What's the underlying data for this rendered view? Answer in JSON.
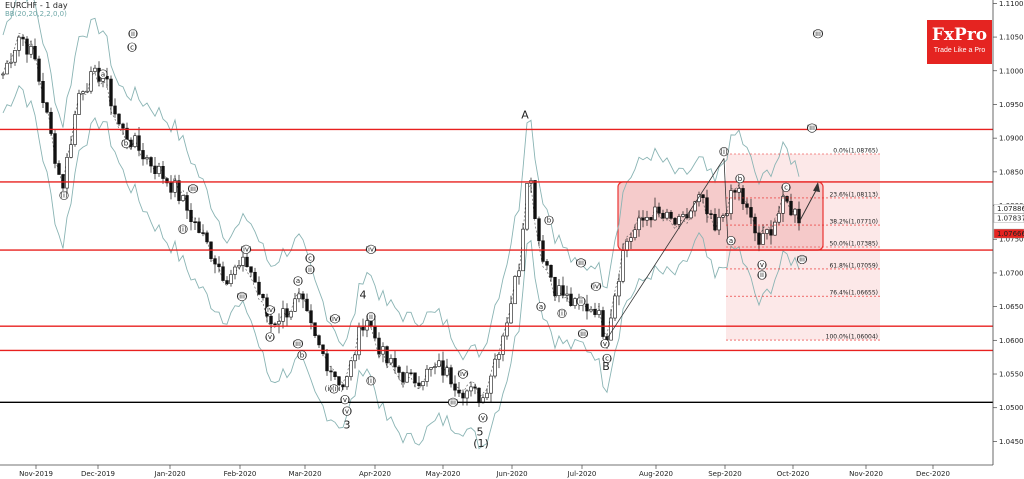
{
  "header": {
    "title": "EURCHF - 1 day",
    "indicator": "BB(20,20,2,2,0,0)"
  },
  "brand": {
    "name": "FxPro",
    "tagline": "Trade Like a Pro"
  },
  "colors": {
    "levels": "#e8201f",
    "support": "#000000",
    "band": "#8ab4b4",
    "zone_fill": "#f5c6c6",
    "fib_fill": "#fbe0e0",
    "price_bg": "#e52421"
  },
  "chart_data": {
    "type": "candlestick",
    "title": "EURCHF - 1 day",
    "x_ticks": [
      "Nov-2019",
      "Dec-2019",
      "Jan-2020",
      "Feb-2020",
      "Mar-2020",
      "Apr-2020",
      "May-2020",
      "Jun-2020",
      "Jul-2020",
      "Aug-2020",
      "Sep-2020",
      "Oct-2020",
      "Nov-2020",
      "Dec-2020"
    ],
    "ylim": [
      1.0415,
      1.1105
    ],
    "y_ticks": [
      "1.11000",
      "1.10500",
      "1.10000",
      "1.09500",
      "1.09000",
      "1.08500",
      "1.08000",
      "1.07500",
      "1.07000",
      "1.06500",
      "1.06000",
      "1.05500",
      "1.05000",
      "1.04500"
    ],
    "price_tags": [
      "1.07886",
      "1.07837",
      "1.07666"
    ],
    "horizontal_levels": [
      1.0913,
      1.0835,
      1.0734,
      1.0621,
      1.0585
    ],
    "support_level": 1.0508,
    "consolidation_zone": {
      "top": 1.0835,
      "bottom": 1.0734,
      "from": "Jul-2020",
      "to": "Oct-2020"
    },
    "fibonacci": [
      {
        "label": "0.0%(1.08765)",
        "value": 1.08765
      },
      {
        "label": "23.6%(1.08113)",
        "value": 1.08113
      },
      {
        "label": "38.2%(1.07710)",
        "value": 1.0771
      },
      {
        "label": "50.0%(1.07385)",
        "value": 1.07385
      },
      {
        "label": "61.8%(1.07059)",
        "value": 1.07059
      },
      {
        "label": "76.4%(1.06655)",
        "value": 1.06655
      },
      {
        "label": "100.0%(1.06004)",
        "value": 1.06004
      }
    ],
    "wave_labels": [
      {
        "t": "(i)",
        "x": "Nov-2019",
        "y": 1.0815
      },
      {
        "t": "(a)",
        "x": "Dec-2019",
        "y": 1.0995
      },
      {
        "t": "(ii)",
        "x": "Dec-2019",
        "y": 1.1055
      },
      {
        "t": "(c)",
        "x": "Dec-2019",
        "y": 1.1035
      },
      {
        "t": "(b)",
        "x": "Dec-2019",
        "y": 1.0892
      },
      {
        "t": "(iii)",
        "x": "Jan-2020",
        "y": 1.0825
      },
      {
        "t": "(i)",
        "x": "Jan-2020",
        "y": 1.0765
      },
      {
        "t": "(iv)",
        "x": "Feb-2020",
        "y": 1.0735
      },
      {
        "t": "(ii)",
        "x": "Feb-2020",
        "y": 1.0705
      },
      {
        "t": "(iii)",
        "x": "Feb-2020",
        "y": 1.0665
      },
      {
        "t": "(iv)",
        "x": "Feb-2020",
        "y": 1.0645
      },
      {
        "t": "(v)",
        "x": "Mar-2020",
        "y": 1.0605
      },
      {
        "t": "(iii)",
        "x": "Mar-2020",
        "y": 1.0595
      },
      {
        "t": "(iv)",
        "x": "Mar-2020",
        "y": 1.0735
      },
      {
        "t": "(c)",
        "x": "Mar-2020",
        "y": 1.0722
      },
      {
        "t": "(a)",
        "x": "Mar-2020",
        "y": 1.0688
      },
      {
        "t": "(b)",
        "x": "Mar-2020",
        "y": 1.0578
      },
      {
        "t": "(iv)",
        "x": "Mar-2020",
        "y": 1.0632
      },
      {
        "t": "(i)(iii)",
        "x": "Mar-2020",
        "y": 1.0528
      },
      {
        "t": "(v)",
        "x": "Mar-2020",
        "y": 1.0512
      },
      {
        "t": "(v)",
        "x": "Apr-2020",
        "y": 1.0495
      },
      {
        "t": "(ii)",
        "x": "Apr-2020",
        "y": 1.0635
      },
      {
        "t": "(i)",
        "x": "Apr-2020",
        "y": 1.054
      },
      {
        "t": "(iii)",
        "x": "May-2020",
        "y": 1.0508
      },
      {
        "t": "(iv)",
        "x": "May-2020",
        "y": 1.055
      },
      {
        "t": "(v)",
        "x": "May-2020",
        "y": 1.0485
      },
      {
        "t": "(b)",
        "x": "Jun-2020",
        "y": 1.0778
      },
      {
        "t": "(a)",
        "x": "Jun-2020",
        "y": 1.065
      },
      {
        "t": "(i)",
        "x": "Jul-2020",
        "y": 1.064
      },
      {
        "t": "(iii)",
        "x": "Jul-2020",
        "y": 1.0715
      },
      {
        "t": "(ii)",
        "x": "Jul-2020",
        "y": 1.0658
      },
      {
        "t": "(iii)",
        "x": "Jul-2020",
        "y": 1.061
      },
      {
        "t": "(iv)",
        "x": "Jul-2020",
        "y": 1.068
      },
      {
        "t": "(v)",
        "x": "Jul-2020",
        "y": 1.0595
      },
      {
        "t": "(c)",
        "x": "Jul-2020",
        "y": 1.0573
      },
      {
        "t": "(i)",
        "x": "Sep-2020",
        "y": 1.088
      },
      {
        "t": "(b)",
        "x": "Sep-2020",
        "y": 1.084
      },
      {
        "t": "(a)",
        "x": "Sep-2020",
        "y": 1.0748
      },
      {
        "t": "(c)",
        "x": "Sep-2020",
        "y": 1.0827
      },
      {
        "t": "(v)",
        "x": "Sep-2020",
        "y": 1.0712
      },
      {
        "t": "(ii)",
        "x": "Sep-2020",
        "y": 1.0697
      },
      {
        "t": "(iii)",
        "x": "Oct-2020",
        "y": 1.072
      },
      {
        "t": "(iii)",
        "x": "Oct-2020",
        "y": 1.0915
      },
      {
        "t": "(iii)",
        "x": "Nov-2020",
        "y": 1.1055
      }
    ],
    "big_labels": [
      {
        "t": "A",
        "x": "Jun-2020",
        "y": 1.0935
      },
      {
        "t": "B",
        "x": "Jul-2020",
        "y": 1.0562
      },
      {
        "t": "3",
        "x": "Mar-2020",
        "y": 1.0475
      },
      {
        "t": "4",
        "x": "Mar-2020",
        "y": 1.0668
      },
      {
        "t": "5",
        "x": "May-2020",
        "y": 1.0465
      },
      {
        "t": "(1)",
        "x": "May-2020",
        "y": 1.0448
      }
    ]
  }
}
